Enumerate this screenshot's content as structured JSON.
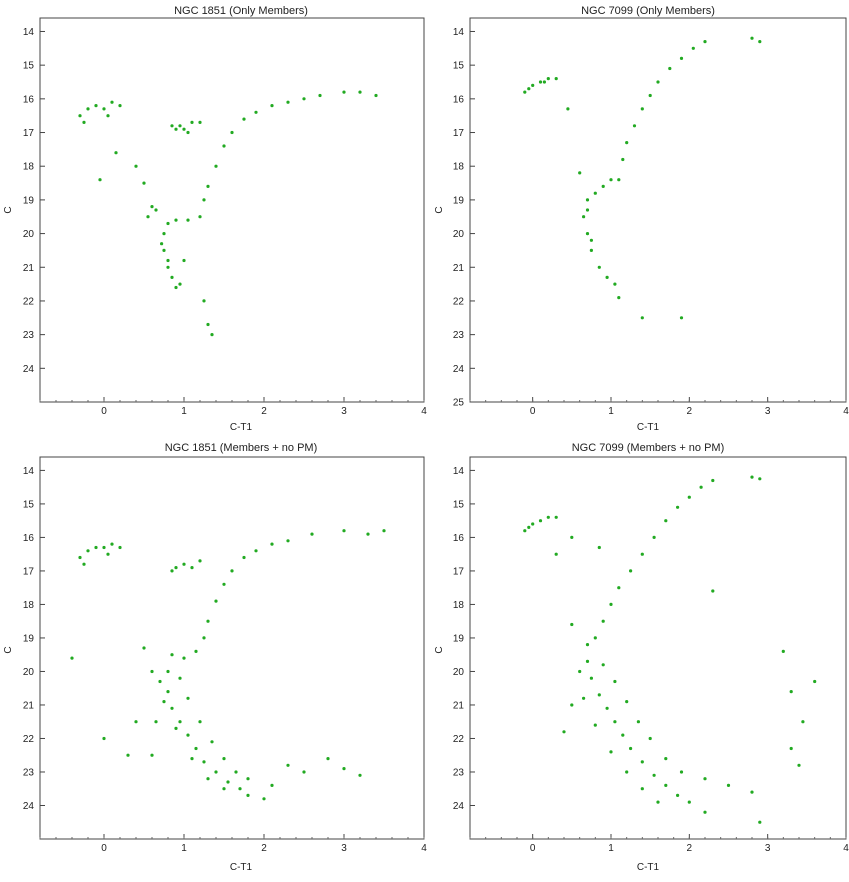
{
  "figure": {
    "background": "#ffffff",
    "point_color": "#22aa22",
    "dense_color": "#0a3a0a"
  },
  "chart_data": [
    {
      "type": "scatter",
      "title": "NGC 1851 (Only Members)",
      "xlabel": "C-T1",
      "ylabel": "C",
      "xlim": [
        -0.8,
        4.0
      ],
      "ylim": [
        25.0,
        13.6
      ],
      "y_inverted": true,
      "xticks": [
        0,
        1,
        2,
        3,
        4
      ],
      "yticks": [
        14,
        15,
        16,
        17,
        18,
        19,
        20,
        21,
        22,
        23,
        24
      ],
      "grid": false,
      "legend": "none",
      "series": [
        {
          "color": "#22aa22",
          "points": [
            [
              -0.3,
              16.5
            ],
            [
              -0.2,
              16.3
            ],
            [
              -0.1,
              16.2
            ],
            [
              0.0,
              16.3
            ],
            [
              0.1,
              16.1
            ],
            [
              -0.25,
              16.7
            ],
            [
              0.05,
              16.5
            ],
            [
              0.2,
              16.2
            ],
            [
              0.15,
              17.6
            ],
            [
              -0.05,
              18.4
            ],
            [
              0.4,
              18.0
            ],
            [
              0.5,
              18.5
            ],
            [
              0.55,
              19.5
            ],
            [
              0.6,
              19.2
            ],
            [
              0.9,
              16.9
            ],
            [
              0.95,
              16.8
            ],
            [
              1.0,
              16.9
            ],
            [
              1.1,
              16.7
            ],
            [
              1.2,
              16.7
            ],
            [
              0.85,
              16.8
            ],
            [
              1.05,
              17.0
            ],
            [
              0.75,
              20.0
            ],
            [
              0.75,
              20.5
            ],
            [
              0.8,
              21.0
            ],
            [
              0.85,
              21.3
            ],
            [
              0.9,
              21.6
            ],
            [
              0.95,
              21.5
            ],
            [
              0.8,
              20.8
            ],
            [
              0.72,
              20.3
            ],
            [
              0.8,
              19.7
            ],
            [
              0.9,
              19.6
            ],
            [
              1.05,
              19.6
            ],
            [
              1.2,
              19.5
            ],
            [
              1.25,
              19.0
            ],
            [
              1.3,
              18.6
            ],
            [
              1.4,
              18.0
            ],
            [
              1.5,
              17.4
            ],
            [
              1.6,
              17.0
            ],
            [
              1.75,
              16.6
            ],
            [
              1.9,
              16.4
            ],
            [
              2.1,
              16.2
            ],
            [
              2.3,
              16.1
            ],
            [
              2.5,
              16.0
            ],
            [
              2.7,
              15.9
            ],
            [
              3.0,
              15.8
            ],
            [
              3.2,
              15.8
            ],
            [
              3.4,
              15.9
            ],
            [
              1.25,
              22.0
            ],
            [
              1.3,
              22.7
            ],
            [
              1.35,
              23.0
            ],
            [
              0.65,
              19.3
            ],
            [
              1.0,
              20.8
            ]
          ]
        }
      ]
    },
    {
      "type": "scatter",
      "title": "NGC 7099 (Only Members)",
      "xlabel": "C-T1",
      "ylabel": "C",
      "xlim": [
        -0.8,
        4.0
      ],
      "ylim": [
        25.0,
        13.6
      ],
      "y_inverted": true,
      "xticks": [
        0,
        1,
        2,
        3,
        4
      ],
      "yticks": [
        14,
        15,
        16,
        17,
        18,
        19,
        20,
        21,
        22,
        23,
        24,
        25
      ],
      "grid": false,
      "legend": "none",
      "series": [
        {
          "color": "#22aa22",
          "points": [
            [
              -0.1,
              15.8
            ],
            [
              0.0,
              15.6
            ],
            [
              0.1,
              15.5
            ],
            [
              0.2,
              15.4
            ],
            [
              0.3,
              15.4
            ],
            [
              -0.05,
              15.7
            ],
            [
              0.15,
              15.5
            ],
            [
              0.45,
              16.3
            ],
            [
              0.6,
              18.2
            ],
            [
              0.7,
              19.0
            ],
            [
              0.65,
              19.5
            ],
            [
              0.7,
              20.0
            ],
            [
              0.75,
              20.5
            ],
            [
              0.85,
              21.0
            ],
            [
              0.95,
              21.3
            ],
            [
              1.05,
              21.5
            ],
            [
              0.8,
              18.8
            ],
            [
              0.9,
              18.6
            ],
            [
              1.0,
              18.4
            ],
            [
              1.1,
              18.4
            ],
            [
              1.15,
              17.8
            ],
            [
              1.2,
              17.3
            ],
            [
              1.3,
              16.8
            ],
            [
              1.4,
              16.3
            ],
            [
              1.5,
              15.9
            ],
            [
              1.6,
              15.5
            ],
            [
              1.75,
              15.1
            ],
            [
              1.9,
              14.8
            ],
            [
              2.05,
              14.5
            ],
            [
              2.2,
              14.3
            ],
            [
              2.8,
              14.2
            ],
            [
              2.9,
              14.3
            ],
            [
              1.1,
              21.9
            ],
            [
              1.4,
              22.5
            ],
            [
              1.9,
              22.5
            ],
            [
              0.7,
              19.3
            ],
            [
              0.75,
              20.2
            ]
          ]
        }
      ]
    },
    {
      "type": "scatter",
      "title": "NGC 1851 (Members + no PM)",
      "xlabel": "C-T1",
      "ylabel": "C",
      "xlim": [
        -0.8,
        4.0
      ],
      "ylim": [
        25.0,
        13.6
      ],
      "y_inverted": true,
      "xticks": [
        0,
        1,
        2,
        3,
        4
      ],
      "yticks": [
        14,
        15,
        16,
        17,
        18,
        19,
        20,
        21,
        22,
        23,
        24
      ],
      "grid": false,
      "legend": "none",
      "series": [
        {
          "color": "#22aa22",
          "points": [
            [
              -0.3,
              16.6
            ],
            [
              -0.2,
              16.4
            ],
            [
              -0.1,
              16.3
            ],
            [
              0.0,
              16.3
            ],
            [
              0.1,
              16.2
            ],
            [
              -0.25,
              16.8
            ],
            [
              0.05,
              16.5
            ],
            [
              0.2,
              16.3
            ],
            [
              -0.4,
              19.6
            ],
            [
              0.0,
              22.0
            ],
            [
              0.3,
              22.5
            ],
            [
              0.4,
              21.5
            ],
            [
              0.5,
              19.3
            ],
            [
              0.6,
              20.0
            ],
            [
              0.9,
              16.9
            ],
            [
              1.0,
              16.8
            ],
            [
              1.1,
              16.9
            ],
            [
              1.2,
              16.7
            ],
            [
              0.85,
              17.0
            ],
            [
              0.85,
              19.5
            ],
            [
              0.8,
              20.0
            ],
            [
              0.8,
              20.6
            ],
            [
              0.85,
              21.1
            ],
            [
              0.95,
              21.5
            ],
            [
              1.05,
              21.9
            ],
            [
              1.15,
              22.3
            ],
            [
              1.25,
              22.7
            ],
            [
              1.4,
              23.0
            ],
            [
              1.55,
              23.3
            ],
            [
              1.7,
              23.5
            ],
            [
              1.8,
              23.7
            ],
            [
              2.0,
              23.8
            ],
            [
              0.7,
              20.3
            ],
            [
              0.75,
              20.9
            ],
            [
              0.9,
              21.7
            ],
            [
              1.1,
              22.6
            ],
            [
              1.3,
              23.2
            ],
            [
              1.5,
              23.5
            ],
            [
              0.95,
              20.2
            ],
            [
              1.05,
              20.8
            ],
            [
              1.2,
              21.5
            ],
            [
              1.35,
              22.1
            ],
            [
              1.5,
              22.6
            ],
            [
              1.65,
              23.0
            ],
            [
              1.8,
              23.2
            ],
            [
              2.1,
              23.4
            ],
            [
              2.3,
              22.8
            ],
            [
              2.5,
              23.0
            ],
            [
              2.8,
              22.6
            ],
            [
              3.0,
              22.9
            ],
            [
              3.2,
              23.1
            ],
            [
              0.65,
              21.5
            ],
            [
              0.6,
              22.5
            ],
            [
              1.0,
              19.6
            ],
            [
              1.15,
              19.4
            ],
            [
              1.25,
              19.0
            ],
            [
              1.3,
              18.5
            ],
            [
              1.4,
              17.9
            ],
            [
              1.5,
              17.4
            ],
            [
              1.6,
              17.0
            ],
            [
              1.75,
              16.6
            ],
            [
              1.9,
              16.4
            ],
            [
              2.1,
              16.2
            ],
            [
              2.3,
              16.1
            ],
            [
              2.6,
              15.9
            ],
            [
              3.0,
              15.8
            ],
            [
              3.3,
              15.9
            ],
            [
              3.5,
              15.8
            ]
          ]
        }
      ]
    },
    {
      "type": "scatter",
      "title": "NGC 7099 (Members + no PM)",
      "xlabel": "C-T1",
      "ylabel": "C",
      "xlim": [
        -0.8,
        4.0
      ],
      "ylim": [
        25.0,
        13.6
      ],
      "y_inverted": true,
      "xticks": [
        0,
        1,
        2,
        3,
        4
      ],
      "yticks": [
        14,
        15,
        16,
        17,
        18,
        19,
        20,
        21,
        22,
        23,
        24
      ],
      "grid": false,
      "legend": "none",
      "series": [
        {
          "color": "#22aa22",
          "points": [
            [
              -0.1,
              15.8
            ],
            [
              0.0,
              15.6
            ],
            [
              0.1,
              15.5
            ],
            [
              0.2,
              15.4
            ],
            [
              0.3,
              15.4
            ],
            [
              -0.05,
              15.7
            ],
            [
              0.5,
              16.0
            ],
            [
              0.3,
              16.5
            ],
            [
              0.85,
              16.3
            ],
            [
              0.5,
              18.6
            ],
            [
              0.7,
              19.2
            ],
            [
              0.7,
              19.7
            ],
            [
              0.75,
              20.2
            ],
            [
              0.85,
              20.7
            ],
            [
              0.95,
              21.1
            ],
            [
              1.05,
              21.5
            ],
            [
              1.15,
              21.9
            ],
            [
              1.25,
              22.3
            ],
            [
              1.4,
              22.7
            ],
            [
              1.55,
              23.1
            ],
            [
              1.7,
              23.4
            ],
            [
              1.85,
              23.7
            ],
            [
              2.0,
              23.9
            ],
            [
              2.2,
              24.2
            ],
            [
              0.6,
              20.0
            ],
            [
              0.65,
              20.8
            ],
            [
              0.8,
              21.6
            ],
            [
              1.0,
              22.4
            ],
            [
              1.2,
              23.0
            ],
            [
              1.4,
              23.5
            ],
            [
              1.6,
              23.9
            ],
            [
              0.9,
              19.8
            ],
            [
              1.05,
              20.3
            ],
            [
              1.2,
              20.9
            ],
            [
              1.35,
              21.5
            ],
            [
              1.5,
              22.0
            ],
            [
              1.7,
              22.6
            ],
            [
              1.9,
              23.0
            ],
            [
              2.2,
              23.2
            ],
            [
              2.5,
              23.4
            ],
            [
              2.8,
              23.6
            ],
            [
              0.5,
              21.0
            ],
            [
              0.4,
              21.8
            ],
            [
              3.2,
              19.4
            ],
            [
              3.3,
              20.6
            ],
            [
              3.45,
              21.5
            ],
            [
              3.3,
              22.3
            ],
            [
              3.6,
              20.3
            ],
            [
              3.4,
              22.8
            ],
            [
              2.3,
              17.6
            ],
            [
              2.9,
              24.5
            ],
            [
              0.8,
              19.0
            ],
            [
              0.9,
              18.5
            ],
            [
              1.0,
              18.0
            ],
            [
              1.1,
              17.5
            ],
            [
              1.25,
              17.0
            ],
            [
              1.4,
              16.5
            ],
            [
              1.55,
              16.0
            ],
            [
              1.7,
              15.5
            ],
            [
              1.85,
              15.1
            ],
            [
              2.0,
              14.8
            ],
            [
              2.15,
              14.5
            ],
            [
              2.3,
              14.3
            ],
            [
              2.8,
              14.2
            ],
            [
              2.9,
              14.25
            ]
          ]
        }
      ]
    }
  ]
}
